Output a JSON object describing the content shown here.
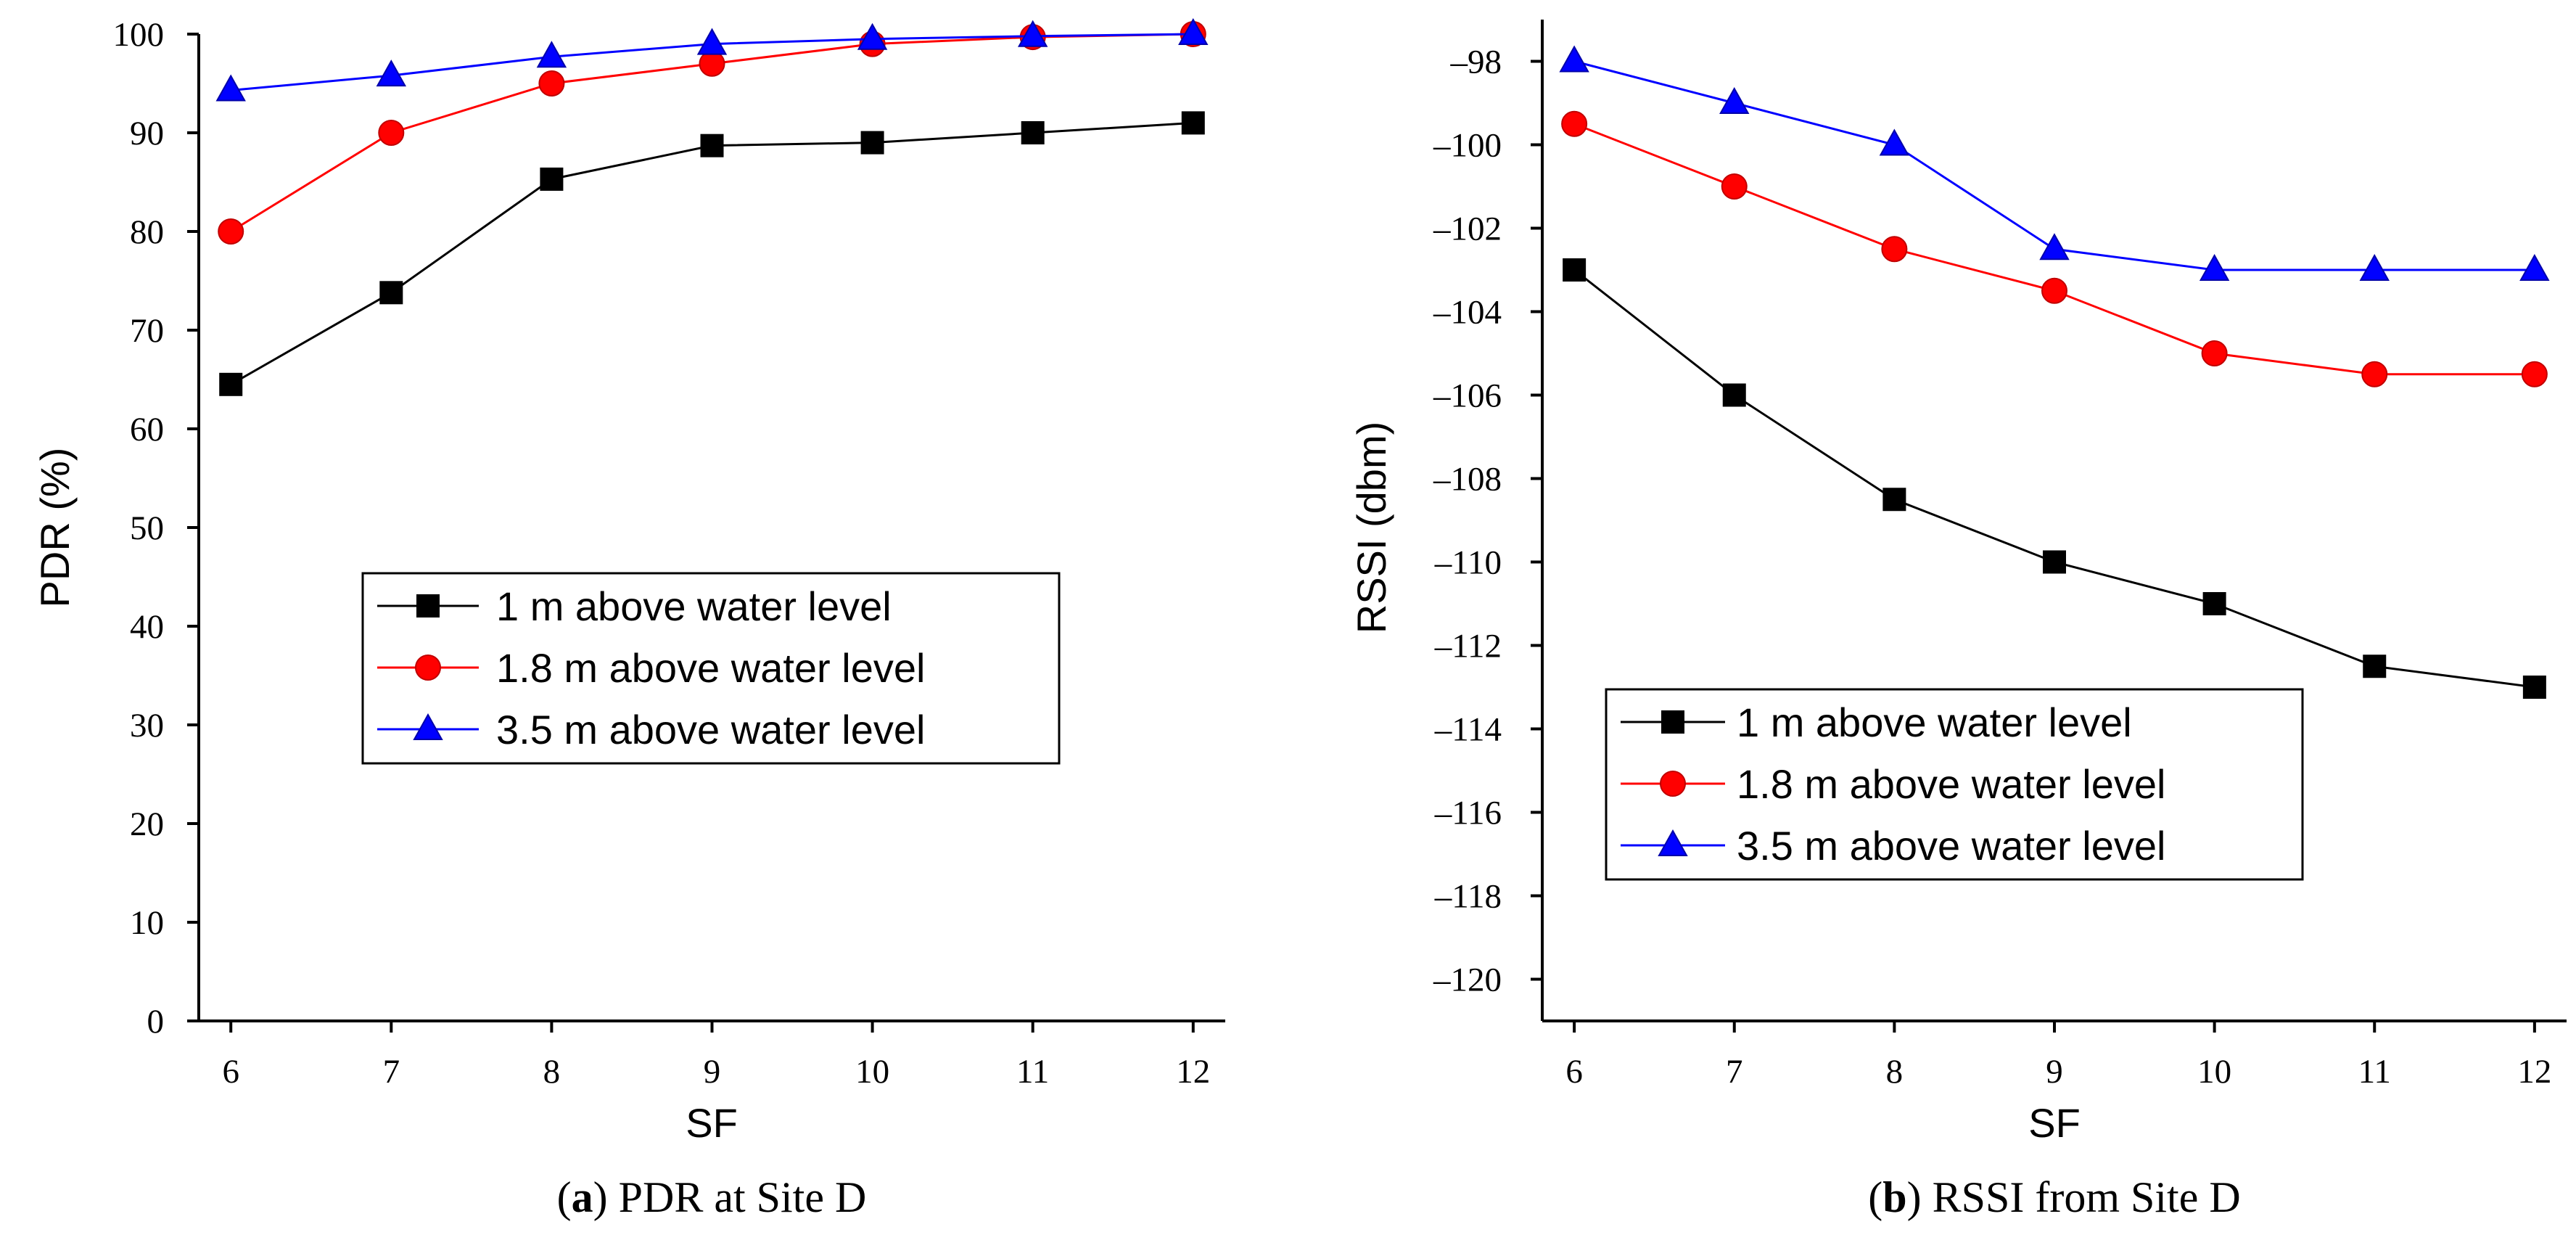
{
  "chart_data": [
    {
      "type": "line",
      "title": "",
      "caption": {
        "letter": "a",
        "text": "PDR at Site D"
      },
      "xlabel": "SF",
      "ylabel": "PDR (%)",
      "x": [
        6,
        7,
        8,
        9,
        10,
        11,
        12
      ],
      "xlim": [
        5.8,
        12.2
      ],
      "ylim": [
        0,
        100
      ],
      "xticks": [
        6,
        7,
        8,
        9,
        10,
        11,
        12
      ],
      "yticks": [
        0,
        10,
        20,
        30,
        40,
        50,
        60,
        70,
        80,
        90,
        100
      ],
      "legend_position": "center",
      "series": [
        {
          "name": "1 m above water level",
          "color": "#000000",
          "marker": "square",
          "values": [
            64.5,
            73.8,
            85.3,
            88.7,
            89.0,
            90.0,
            91.0
          ]
        },
        {
          "name": "1.8 m above water level",
          "color": "#ff0000",
          "marker": "circle",
          "values": [
            80.0,
            90.0,
            95.0,
            97.0,
            99.0,
            99.7,
            100.0
          ]
        },
        {
          "name": "3.5 m above water level",
          "color": "#0000ff",
          "marker": "triangle",
          "values": [
            94.3,
            95.8,
            97.7,
            99.0,
            99.5,
            99.8,
            100.0
          ]
        }
      ]
    },
    {
      "type": "line",
      "title": "",
      "caption": {
        "letter": "b",
        "text": "RSSI from Site D"
      },
      "xlabel": "SF",
      "ylabel": "RSSI (dbm)",
      "x": [
        6,
        7,
        8,
        9,
        10,
        11,
        12
      ],
      "xlim": [
        5.8,
        12.2
      ],
      "ylim": [
        -121,
        -97
      ],
      "xticks": [
        6,
        7,
        8,
        9,
        10,
        11,
        12
      ],
      "yticks": [
        -120,
        -118,
        -116,
        -114,
        -112,
        -110,
        -108,
        -106,
        -104,
        -102,
        -100,
        -98
      ],
      "ytick_labels": [
        "–120",
        "–118",
        "–116",
        "–114",
        "–112",
        "–110",
        "–108",
        "–106",
        "–104",
        "–102",
        "–100",
        "–98"
      ],
      "legend_position": "bottom-left",
      "series": [
        {
          "name": "1 m above water level",
          "color": "#000000",
          "marker": "square",
          "values": [
            -103.0,
            -106.0,
            -108.5,
            -110.0,
            -111.0,
            -112.5,
            -113.0
          ]
        },
        {
          "name": "1.8 m above water level",
          "color": "#ff0000",
          "marker": "circle",
          "values": [
            -99.5,
            -101.0,
            -102.5,
            -103.5,
            -105.0,
            -105.5,
            -105.5
          ]
        },
        {
          "name": "3.5 m above water level",
          "color": "#0000ff",
          "marker": "triangle",
          "values": [
            -98.0,
            -99.0,
            -100.0,
            -102.5,
            -103.0,
            -103.0,
            -103.0
          ]
        }
      ]
    }
  ]
}
